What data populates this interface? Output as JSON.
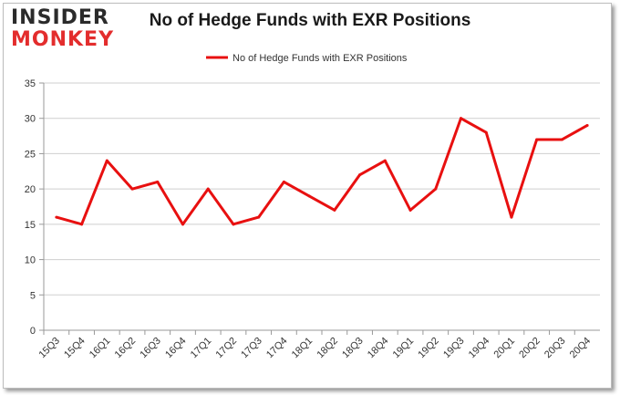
{
  "logo": {
    "line1": "INSIDER",
    "line2": "MONKEY"
  },
  "chart_data": {
    "type": "line",
    "title": "No of Hedge Funds with EXR Positions",
    "xlabel": "",
    "ylabel": "",
    "categories": [
      "15Q3",
      "15Q4",
      "16Q1",
      "16Q2",
      "16Q3",
      "16Q4",
      "17Q1",
      "17Q2",
      "17Q3",
      "17Q4",
      "18Q1",
      "18Q2",
      "18Q3",
      "18Q4",
      "19Q1",
      "19Q2",
      "19Q3",
      "19Q4",
      "20Q1",
      "20Q2",
      "20Q3",
      "20Q4"
    ],
    "series": [
      {
        "name": "No of Hedge Funds with EXR Positions",
        "color": "#e81010",
        "values": [
          16,
          15,
          24,
          20,
          21,
          15,
          20,
          15,
          16,
          21,
          19,
          17,
          22,
          24,
          17,
          20,
          30,
          28,
          16,
          27,
          27,
          29
        ]
      }
    ],
    "ylim": [
      0,
      35
    ],
    "yticks": [
      0,
      5,
      10,
      15,
      20,
      25,
      30,
      35
    ],
    "grid": true,
    "legend": "top-center"
  }
}
